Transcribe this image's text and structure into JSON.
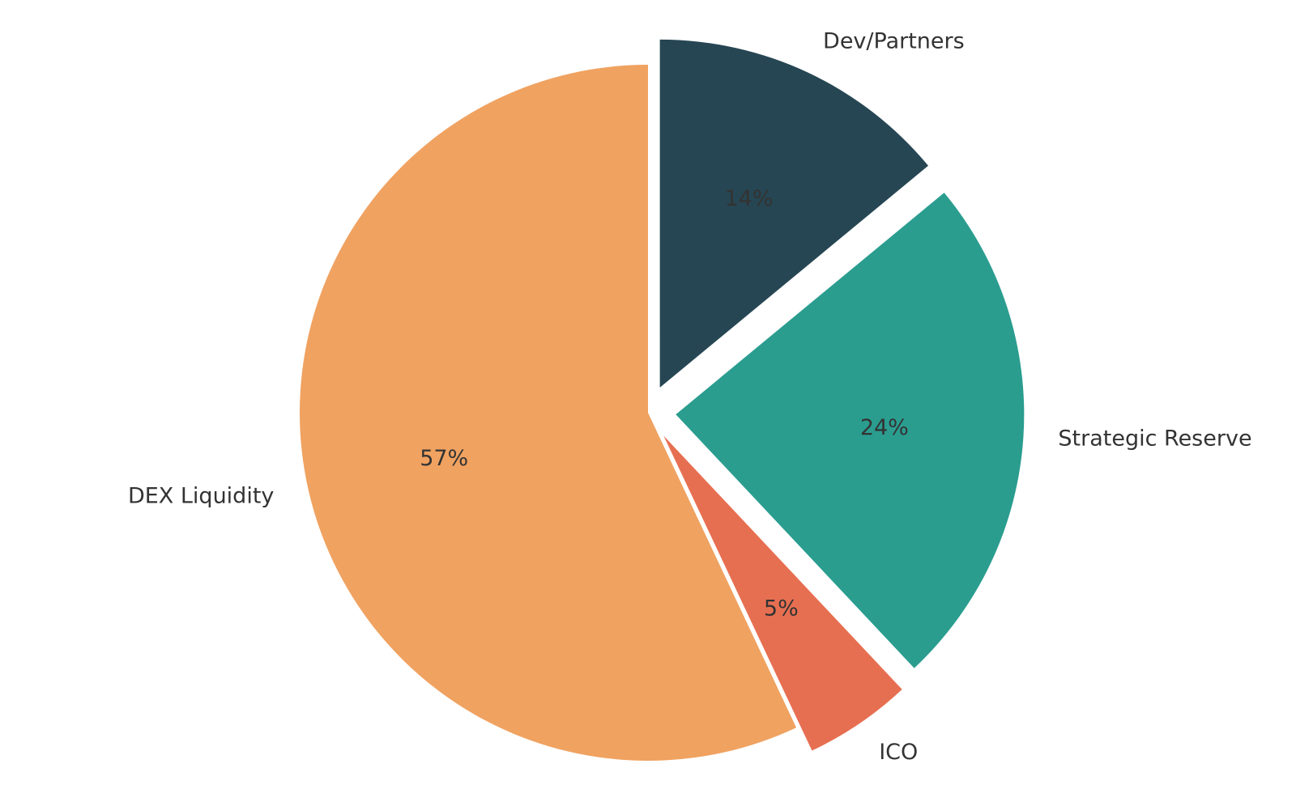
{
  "chart_data": {
    "type": "pie",
    "title": "",
    "slices": [
      {
        "label": "Dev/Partners",
        "value": 14,
        "pct_label": "14%",
        "color": "#264653",
        "exploded": true
      },
      {
        "label": "Strategic Reserve",
        "value": 24,
        "pct_label": "24%",
        "color": "#2a9d8f",
        "exploded": true
      },
      {
        "label": "ICO",
        "value": 5,
        "pct_label": "5%",
        "color": "#e76f51",
        "exploded": true
      },
      {
        "label": "DEX Liquidity",
        "value": 57,
        "pct_label": "57%",
        "color": "#f0a261",
        "exploded": false
      }
    ],
    "start_angle_deg": 90,
    "direction": "clockwise"
  }
}
